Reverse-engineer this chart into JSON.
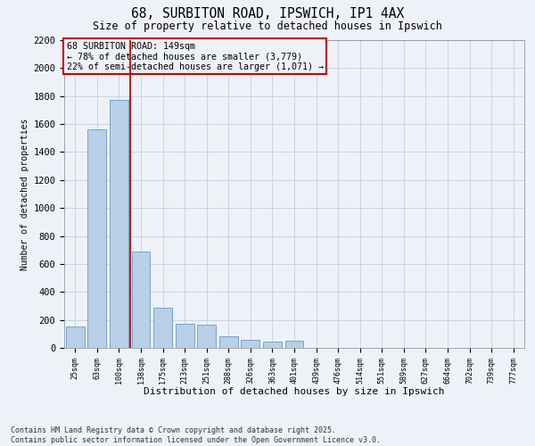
{
  "title_line1": "68, SURBITON ROAD, IPSWICH, IP1 4AX",
  "title_line2": "Size of property relative to detached houses in Ipswich",
  "xlabel": "Distribution of detached houses by size in Ipswich",
  "ylabel": "Number of detached properties",
  "categories": [
    "25sqm",
    "63sqm",
    "100sqm",
    "138sqm",
    "175sqm",
    "213sqm",
    "251sqm",
    "288sqm",
    "326sqm",
    "363sqm",
    "401sqm",
    "439sqm",
    "476sqm",
    "514sqm",
    "551sqm",
    "589sqm",
    "627sqm",
    "664sqm",
    "702sqm",
    "739sqm",
    "777sqm"
  ],
  "values": [
    155,
    1560,
    1770,
    690,
    290,
    175,
    165,
    80,
    55,
    45,
    50,
    0,
    0,
    0,
    0,
    0,
    0,
    0,
    0,
    0,
    0
  ],
  "bar_color": "#b8d0e8",
  "bar_edge_color": "#6699cc",
  "grid_color": "#c5d5e8",
  "background_color": "#eef2f8",
  "vline_x_index": 2.5,
  "vline_color": "#cc0000",
  "annotation_text": "68 SURBITON ROAD: 149sqm\n← 78% of detached houses are smaller (3,779)\n22% of semi-detached houses are larger (1,071) →",
  "annotation_box_color": "#cc0000",
  "ylim": [
    0,
    2200
  ],
  "yticks": [
    0,
    200,
    400,
    600,
    800,
    1000,
    1200,
    1400,
    1600,
    1800,
    2000,
    2200
  ],
  "footnote": "Contains HM Land Registry data © Crown copyright and database right 2025.\nContains public sector information licensed under the Open Government Licence v3.0."
}
